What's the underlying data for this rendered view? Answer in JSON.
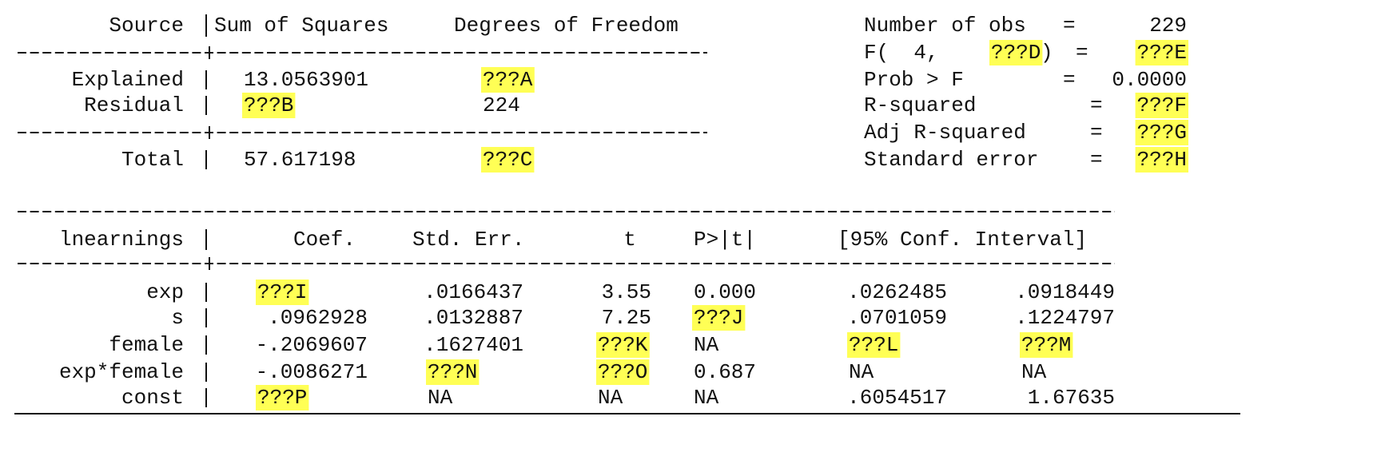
{
  "anova": {
    "headers": [
      "Source",
      "Sum of Squares",
      "Degrees of Freedom"
    ],
    "rows": [
      [
        "Explained",
        "13.0563901",
        "???A"
      ],
      [
        "Residual",
        "???B",
        "224"
      ],
      [
        "Total",
        "57.617198",
        "???C"
      ]
    ]
  },
  "stats": {
    "n_obs": {
      "label": "Number of obs",
      "eq": "=",
      "value": "229"
    },
    "f": {
      "label": "F(  4,",
      "df": "???D",
      "close": ")",
      "eq": "=",
      "value": "???E"
    },
    "prob_f": {
      "label": "Prob > F",
      "eq": "=",
      "value": "0.0000"
    },
    "r2": {
      "label": "R-squared",
      "eq": "=",
      "value": "???F"
    },
    "adj_r2": {
      "label": "Adj R-squared",
      "eq": "=",
      "value": "???G"
    },
    "se": {
      "label": "Standard error",
      "eq": "=",
      "value": "???H"
    }
  },
  "coef_table": {
    "headers": [
      "lnearnings",
      "Coef.",
      "Std. Err.",
      "t",
      "P>|t|",
      "[95% Conf. Interval]"
    ],
    "rows": [
      [
        "exp",
        "???I",
        ".0166437",
        "3.55",
        "0.000",
        ".0262485",
        ".0918449"
      ],
      [
        "s",
        ".0962928",
        ".0132887",
        "7.25",
        "???J",
        ".0701059",
        ".1224797"
      ],
      [
        "female",
        "-.2069607",
        ".1627401",
        "???K",
        "NA",
        "???L",
        "???M"
      ],
      [
        "exp*female",
        "-.0086271",
        "???N",
        "???O",
        "0.687",
        "NA",
        "NA"
      ],
      [
        "const",
        "???P",
        "NA",
        "NA",
        "NA",
        ".6054517",
        "1.67635"
      ]
    ]
  }
}
